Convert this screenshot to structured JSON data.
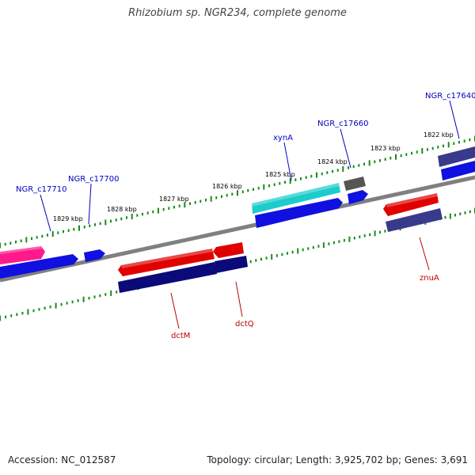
{
  "title": "Rhizobium sp. NGR234, complete genome",
  "footer": {
    "accession": "Accession: NC_012587",
    "info": "Topology: circular; Length: 3,925,702 bp; Genes: 3,691"
  },
  "colors": {
    "backbone": "#808080",
    "tick": "#1a8a1a",
    "label_blue": "#0000c0",
    "label_red": "#c00000",
    "tick_label": "#000000"
  },
  "kbp_labels": [
    "1829 kbp",
    "1828 kbp",
    "1827 kbp",
    "1826 kbp",
    "1825 kbp",
    "1824 kbp",
    "1823 kbp",
    "1822 kbp"
  ],
  "features": [
    {
      "name": "pink-feature",
      "color": "#ff1a8c"
    },
    {
      "name": "blue-long-top",
      "color": "#1010e0"
    },
    {
      "name": "blue-short-top",
      "color": "#1010e0"
    },
    {
      "name": "dctM-red",
      "color": "#e00000"
    },
    {
      "name": "dctQ-red",
      "color": "#e00000"
    },
    {
      "name": "dctM-navy",
      "color": "#0a0a78"
    },
    {
      "name": "dctQ-navy",
      "color": "#0a0a78"
    },
    {
      "name": "xynA-cyan",
      "color": "#1ccccc"
    },
    {
      "name": "xynA-blue",
      "color": "#1010e0"
    },
    {
      "name": "c17660-gray",
      "color": "#555555"
    },
    {
      "name": "c17660-blue",
      "color": "#1010e0"
    },
    {
      "name": "znuA-red",
      "color": "#e00000"
    },
    {
      "name": "znuA-purple",
      "color": "#3a3a8c"
    },
    {
      "name": "c17640-purple",
      "color": "#3a3a8c"
    },
    {
      "name": "c17640-blue",
      "color": "#1010e0"
    }
  ],
  "gene_labels": [
    {
      "text": "NGR_c17710",
      "color": "blue"
    },
    {
      "text": "NGR_c17700",
      "color": "blue"
    },
    {
      "text": "xynA",
      "color": "blue"
    },
    {
      "text": "NGR_c17660",
      "color": "blue"
    },
    {
      "text": "NGR_c17640",
      "color": "blue"
    },
    {
      "text": "dctM",
      "color": "red"
    },
    {
      "text": "dctQ",
      "color": "red"
    },
    {
      "text": "znuA",
      "color": "red"
    }
  ]
}
